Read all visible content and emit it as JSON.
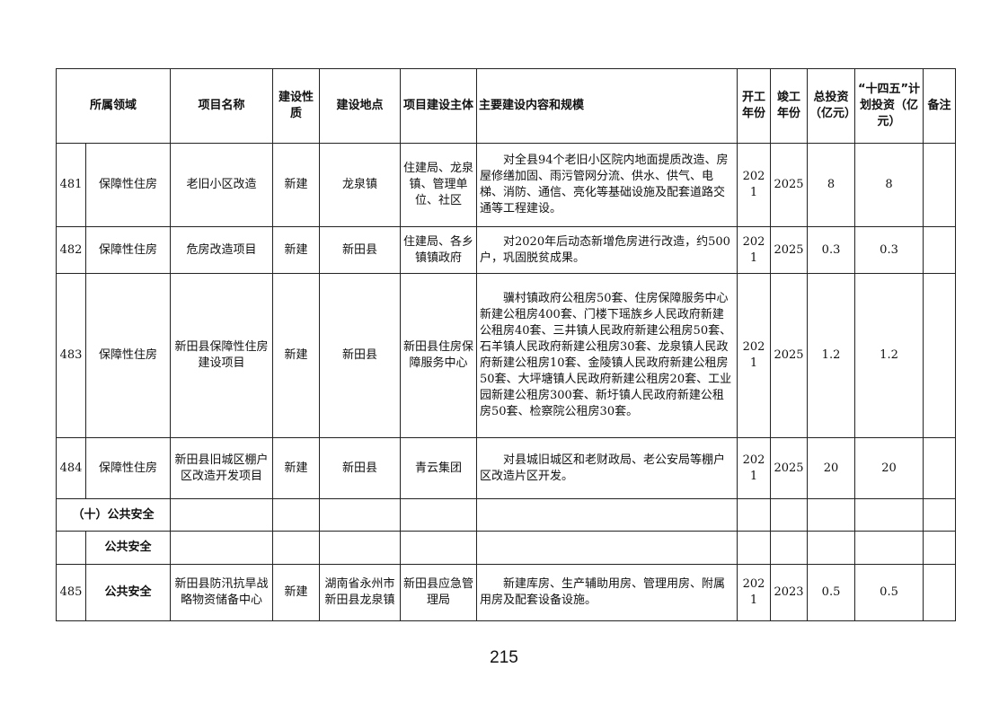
{
  "headers": [
    "所属领域",
    "项目名称",
    "建设性质",
    "建设地点",
    "项目建设主体",
    "主要建设内容和规模",
    "开工年份",
    "竣工年份",
    "总投资（亿元）",
    "“十四五”计划投资（亿元）",
    "备注"
  ],
  "rows": [
    {
      "no": "481",
      "domain": "保障性住房",
      "name": "老旧小区改造",
      "nature": "新建",
      "location": "龙泉镇",
      "owner": "住建局、龙泉镇、管理单位、社区",
      "content": "对全县94个老旧小区院内地面提质改造、房屋修缮加固、雨污管网分流、供水、供气、电梯、消防、通信、亮化等基础设施及配套道路交通等工程建设。",
      "start": "2021",
      "end": "2025",
      "total": "8",
      "plan": "8",
      "note": ""
    },
    {
      "no": "482",
      "domain": "保障性住房",
      "name": "危房改造项目",
      "nature": "新建",
      "location": "新田县",
      "owner": "住建局、各乡镇镇政府",
      "content": "对2020年后动态新增危房进行改造，约500户，巩固脱贫成果。",
      "start": "2021",
      "end": "2025",
      "total": "0.3",
      "plan": "0.3",
      "note": ""
    },
    {
      "no": "483",
      "domain": "保障性住房",
      "name": "新田县保障性住房建设项目",
      "nature": "新建",
      "location": "新田县",
      "owner": "新田县住房保障服务中心",
      "content": "骥村镇政府公租房50套、住房保障服务中心新建公租房400套、门楼下瑶族乡人民政府新建公租房40套、三井镇人民政府新建公租房50套、石羊镇人民政府新建公租房30套、龙泉镇人民政府新建公租房10套、金陵镇人民政府新建公租房50套、大坪塘镇人民政府新建公租房20套、工业园新建公租房300套、新圩镇人民政府新建公租房50套、检察院公租房30套。",
      "start": "2021",
      "end": "2025",
      "total": "1.2",
      "plan": "1.2",
      "note": ""
    },
    {
      "no": "484",
      "domain": "保障性住房",
      "name": "新田县旧城区棚户区改造开发项目",
      "nature": "新建",
      "location": "新田县",
      "owner": "青云集团",
      "content": "对县城旧城区和老财政局、老公安局等棚户区改造片区开发。",
      "start": "2021",
      "end": "2025",
      "total": "20",
      "plan": "20",
      "note": ""
    }
  ],
  "section": "（十）公共安全",
  "subsection": "公共安全",
  "last_row": {
    "no": "485",
    "domain": "公共安全",
    "name": "新田县防汛抗旱战略物资储备中心",
    "nature": "新建",
    "location": "湖南省永州市新田县龙泉镇",
    "owner": "新田县应急管理局",
    "content": "新建库房、生产辅助用房、管理用房、附属用房及配套设备设施。",
    "start": "2021",
    "end": "2023",
    "total": "0.5",
    "plan": "0.5",
    "note": ""
  },
  "page_number": "215"
}
